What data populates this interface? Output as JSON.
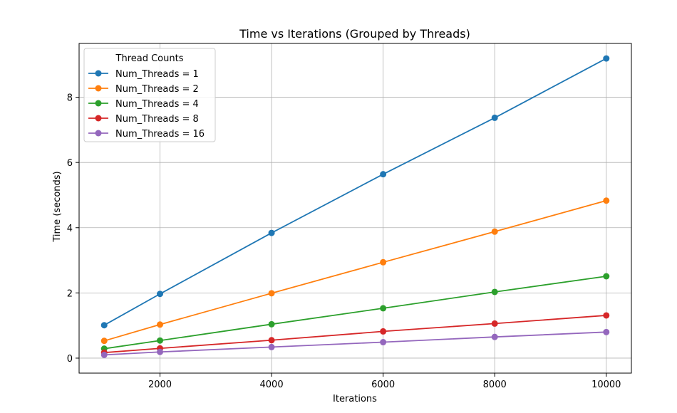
{
  "chart_data": {
    "type": "line",
    "title": "Time vs Iterations (Grouped by Threads)",
    "xlabel": "Iterations",
    "ylabel": "Time (seconds)",
    "x": [
      1000,
      2000,
      4000,
      6000,
      8000,
      10000
    ],
    "xticks": [
      2000,
      4000,
      6000,
      8000,
      10000
    ],
    "yticks": [
      0,
      2,
      4,
      6,
      8
    ],
    "xlim": [
      550,
      10450
    ],
    "ylim": [
      -0.4595,
      9.65
    ],
    "grid": true,
    "legend": {
      "title": "Thread Counts",
      "position": "top-left"
    },
    "series": [
      {
        "name": "Num_Threads = 1",
        "color": "#1f77b4",
        "values": [
          1.01,
          1.97,
          3.84,
          5.64,
          7.37,
          9.19
        ]
      },
      {
        "name": "Num_Threads = 2",
        "color": "#ff7f0e",
        "values": [
          0.53,
          1.03,
          1.99,
          2.94,
          3.88,
          4.83
        ]
      },
      {
        "name": "Num_Threads = 4",
        "color": "#2ca02c",
        "values": [
          0.29,
          0.54,
          1.04,
          1.53,
          2.03,
          2.51
        ]
      },
      {
        "name": "Num_Threads = 8",
        "color": "#d62728",
        "values": [
          0.17,
          0.3,
          0.55,
          0.82,
          1.06,
          1.31
        ]
      },
      {
        "name": "Num_Threads = 16",
        "color": "#9467bd",
        "values": [
          0.1,
          0.19,
          0.34,
          0.49,
          0.65,
          0.8
        ]
      }
    ]
  }
}
